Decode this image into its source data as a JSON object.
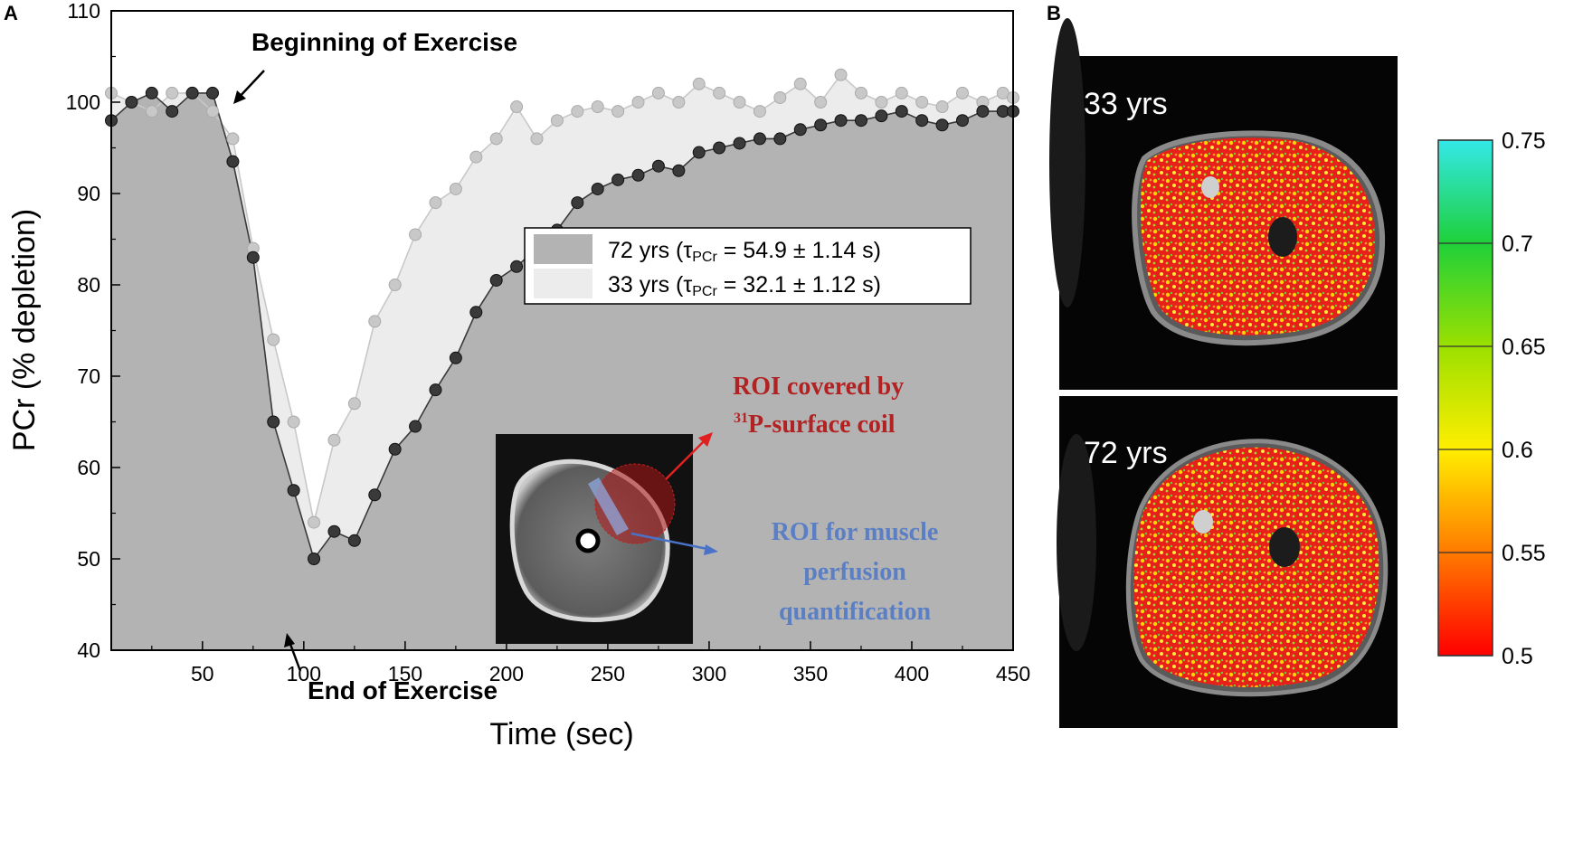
{
  "panels": {
    "a": "A",
    "b": "B"
  },
  "chart_data": {
    "type": "area",
    "xlabel": "Time (sec)",
    "ylabel": "PCr (% depletion)",
    "xlim": [
      5,
      450
    ],
    "ylim": [
      40,
      110
    ],
    "xticks": [
      50,
      100,
      150,
      200,
      250,
      300,
      350,
      400,
      450
    ],
    "yticks": [
      40,
      50,
      60,
      70,
      80,
      90,
      100,
      110
    ],
    "legend": {
      "placement": "upper-right",
      "entries": [
        {
          "label": "72 yrs (",
          "tau": "τ",
          "sub": "PCr",
          "rest": " = 54.9 ± 1.14 s)"
        },
        {
          "label": "33 yrs (",
          "tau": "τ",
          "sub": "PCr",
          "rest": " = 32.1 ± 1.12 s)"
        }
      ]
    },
    "annotations": {
      "begin": "Beginning of Exercise",
      "end": "End of Exercise",
      "roi_coil_1": "ROI covered by",
      "roi_coil_sup": "31",
      "roi_coil_2": "P-surface coil",
      "roi_perf_1": "ROI for muscle",
      "roi_perf_2": "perfusion",
      "roi_perf_3": "quantification"
    },
    "series": [
      {
        "name": "72 yrs",
        "color": "#3a3a3a",
        "fill": "#b3b3b3",
        "x": [
          5,
          15,
          25,
          35,
          45,
          55,
          65,
          75,
          85,
          95,
          105,
          115,
          125,
          135,
          145,
          155,
          165,
          175,
          185,
          195,
          205,
          215,
          225,
          235,
          245,
          255,
          265,
          275,
          285,
          295,
          305,
          315,
          325,
          335,
          345,
          355,
          365,
          375,
          385,
          395,
          405,
          415,
          425,
          435,
          445,
          450
        ],
        "values": [
          98,
          100,
          101,
          99,
          101,
          101,
          93.5,
          83,
          65,
          57.5,
          50,
          53,
          52,
          57,
          62,
          64.5,
          68.5,
          72,
          77,
          80.5,
          82,
          84,
          86,
          89,
          90.5,
          91.5,
          92,
          93,
          92.5,
          94.5,
          95,
          95.5,
          96,
          96,
          97,
          97.5,
          98,
          98,
          98.5,
          99,
          98,
          97.5,
          98,
          99,
          99,
          99
        ]
      },
      {
        "name": "33 yrs",
        "color": "#c8c8c8",
        "fill": "#ececec",
        "x": [
          5,
          15,
          25,
          35,
          45,
          55,
          65,
          75,
          85,
          95,
          105,
          115,
          125,
          135,
          145,
          155,
          165,
          175,
          185,
          195,
          205,
          215,
          225,
          235,
          245,
          255,
          265,
          275,
          285,
          295,
          305,
          315,
          325,
          335,
          345,
          355,
          365,
          375,
          385,
          395,
          405,
          415,
          425,
          435,
          445,
          450
        ],
        "values": [
          101,
          100,
          99,
          101,
          101,
          99,
          96,
          84,
          74,
          65,
          54,
          63,
          67,
          76,
          80,
          85.5,
          89,
          90.5,
          94,
          96,
          99.5,
          96,
          98,
          99,
          99.5,
          99,
          100,
          101,
          100,
          102,
          101,
          100,
          99,
          100.5,
          102,
          100,
          103,
          101,
          100,
          101,
          100,
          99.5,
          101,
          100,
          101,
          100.5
        ]
      }
    ]
  },
  "mri_panels": {
    "top_label": "33 yrs",
    "bottom_label": "72 yrs"
  },
  "colorbar": {
    "ticks": [
      "0.75",
      "0.7",
      "0.65",
      "0.6",
      "0.55",
      "0.5"
    ],
    "range": [
      0.5,
      0.75
    ]
  }
}
